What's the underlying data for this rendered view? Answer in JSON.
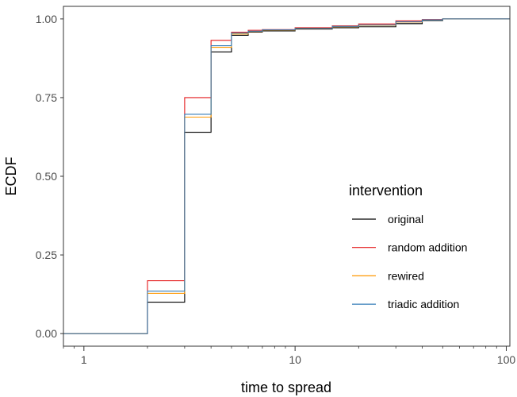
{
  "chart_data": {
    "type": "line",
    "subtype": "step-ecdf",
    "xlabel": "time to spread",
    "ylabel": "ECDF",
    "xscale": "log",
    "xlim": [
      0.8,
      104
    ],
    "ylim": [
      -0.04,
      1.04
    ],
    "x_ticks": [
      1,
      10,
      100
    ],
    "x_tick_labels": [
      "1",
      "10",
      "100"
    ],
    "y_ticks": [
      0,
      0.25,
      0.5,
      0.75,
      1.0
    ],
    "y_tick_labels": [
      "0.00",
      "0.25",
      "0.50",
      "0.75",
      "1.00"
    ],
    "grid": false,
    "legend": {
      "title": "intervention",
      "position": "right-inside"
    },
    "series": [
      {
        "name": "original",
        "color": "#000000",
        "x": [
          0.8,
          2,
          3,
          4,
          5,
          6,
          7,
          10,
          15,
          20,
          30,
          40,
          50,
          104
        ],
        "y": [
          0,
          0.1,
          0.64,
          0.895,
          0.948,
          0.958,
          0.962,
          0.968,
          0.972,
          0.975,
          0.985,
          0.995,
          1.0,
          1.0
        ]
      },
      {
        "name": "random addition",
        "color": "#e41a1c",
        "x": [
          0.8,
          2,
          3,
          4,
          5,
          6,
          7,
          10,
          15,
          20,
          30,
          40,
          50,
          104
        ],
        "y": [
          0,
          0.168,
          0.75,
          0.932,
          0.958,
          0.964,
          0.966,
          0.972,
          0.978,
          0.984,
          0.994,
          0.998,
          1.0,
          1.0
        ]
      },
      {
        "name": "rewired",
        "color": "#ff9800",
        "x": [
          0.8,
          2,
          3,
          4,
          5,
          6,
          7,
          10,
          15,
          20,
          30,
          40,
          50,
          104
        ],
        "y": [
          0,
          0.128,
          0.688,
          0.91,
          0.952,
          0.96,
          0.964,
          0.97,
          0.975,
          0.98,
          0.99,
          0.997,
          1.0,
          1.0
        ]
      },
      {
        "name": "triadic addition",
        "color": "#377eb8",
        "x": [
          0.8,
          2,
          3,
          4,
          5,
          6,
          7,
          10,
          15,
          20,
          30,
          40,
          50,
          104
        ],
        "y": [
          0,
          0.135,
          0.697,
          0.915,
          0.955,
          0.961,
          0.965,
          0.97,
          0.976,
          0.981,
          0.991,
          0.997,
          1.0,
          1.0
        ]
      }
    ]
  }
}
